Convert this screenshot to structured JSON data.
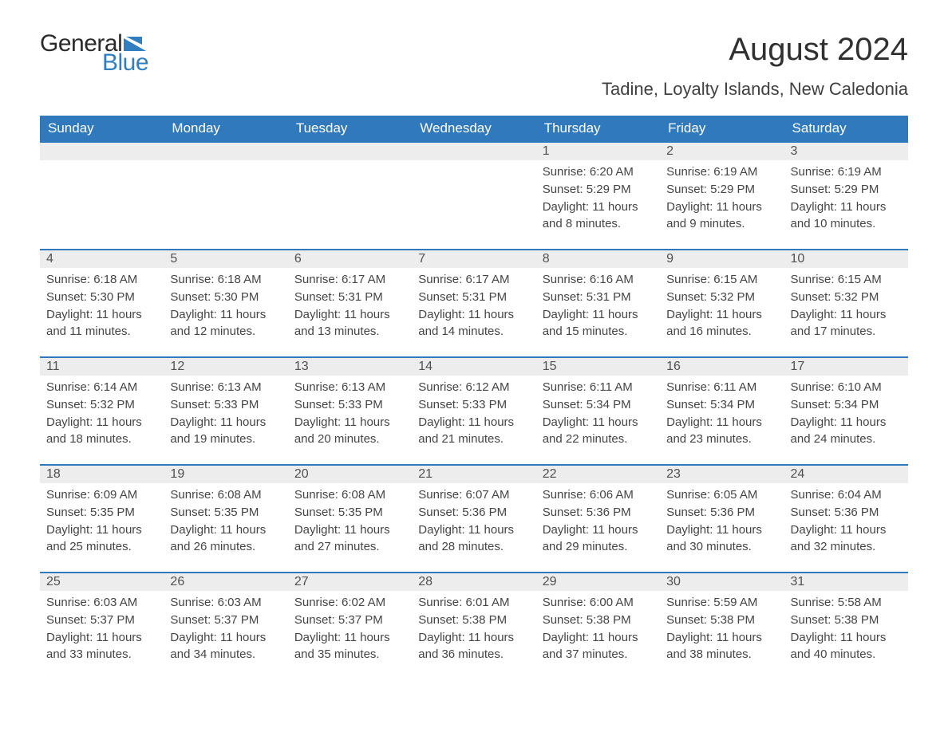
{
  "logo": {
    "word1": "General",
    "word2": "Blue",
    "flag_color": "#2f7fc1"
  },
  "title": "August 2024",
  "location": "Tadine, Loyalty Islands, New Caledonia",
  "colors": {
    "header_bg": "#3079bd",
    "header_text": "#ffffff",
    "daynum_bg": "#ededed",
    "row_divider": "#3079bd",
    "body_text": "#454545"
  },
  "columns": [
    "Sunday",
    "Monday",
    "Tuesday",
    "Wednesday",
    "Thursday",
    "Friday",
    "Saturday"
  ],
  "weeks": [
    [
      null,
      null,
      null,
      null,
      {
        "n": "1",
        "sunrise": "6:20 AM",
        "sunset": "5:29 PM",
        "daylight": "11 hours and 8 minutes."
      },
      {
        "n": "2",
        "sunrise": "6:19 AM",
        "sunset": "5:29 PM",
        "daylight": "11 hours and 9 minutes."
      },
      {
        "n": "3",
        "sunrise": "6:19 AM",
        "sunset": "5:29 PM",
        "daylight": "11 hours and 10 minutes."
      }
    ],
    [
      {
        "n": "4",
        "sunrise": "6:18 AM",
        "sunset": "5:30 PM",
        "daylight": "11 hours and 11 minutes."
      },
      {
        "n": "5",
        "sunrise": "6:18 AM",
        "sunset": "5:30 PM",
        "daylight": "11 hours and 12 minutes."
      },
      {
        "n": "6",
        "sunrise": "6:17 AM",
        "sunset": "5:31 PM",
        "daylight": "11 hours and 13 minutes."
      },
      {
        "n": "7",
        "sunrise": "6:17 AM",
        "sunset": "5:31 PM",
        "daylight": "11 hours and 14 minutes."
      },
      {
        "n": "8",
        "sunrise": "6:16 AM",
        "sunset": "5:31 PM",
        "daylight": "11 hours and 15 minutes."
      },
      {
        "n": "9",
        "sunrise": "6:15 AM",
        "sunset": "5:32 PM",
        "daylight": "11 hours and 16 minutes."
      },
      {
        "n": "10",
        "sunrise": "6:15 AM",
        "sunset": "5:32 PM",
        "daylight": "11 hours and 17 minutes."
      }
    ],
    [
      {
        "n": "11",
        "sunrise": "6:14 AM",
        "sunset": "5:32 PM",
        "daylight": "11 hours and 18 minutes."
      },
      {
        "n": "12",
        "sunrise": "6:13 AM",
        "sunset": "5:33 PM",
        "daylight": "11 hours and 19 minutes."
      },
      {
        "n": "13",
        "sunrise": "6:13 AM",
        "sunset": "5:33 PM",
        "daylight": "11 hours and 20 minutes."
      },
      {
        "n": "14",
        "sunrise": "6:12 AM",
        "sunset": "5:33 PM",
        "daylight": "11 hours and 21 minutes."
      },
      {
        "n": "15",
        "sunrise": "6:11 AM",
        "sunset": "5:34 PM",
        "daylight": "11 hours and 22 minutes."
      },
      {
        "n": "16",
        "sunrise": "6:11 AM",
        "sunset": "5:34 PM",
        "daylight": "11 hours and 23 minutes."
      },
      {
        "n": "17",
        "sunrise": "6:10 AM",
        "sunset": "5:34 PM",
        "daylight": "11 hours and 24 minutes."
      }
    ],
    [
      {
        "n": "18",
        "sunrise": "6:09 AM",
        "sunset": "5:35 PM",
        "daylight": "11 hours and 25 minutes."
      },
      {
        "n": "19",
        "sunrise": "6:08 AM",
        "sunset": "5:35 PM",
        "daylight": "11 hours and 26 minutes."
      },
      {
        "n": "20",
        "sunrise": "6:08 AM",
        "sunset": "5:35 PM",
        "daylight": "11 hours and 27 minutes."
      },
      {
        "n": "21",
        "sunrise": "6:07 AM",
        "sunset": "5:36 PM",
        "daylight": "11 hours and 28 minutes."
      },
      {
        "n": "22",
        "sunrise": "6:06 AM",
        "sunset": "5:36 PM",
        "daylight": "11 hours and 29 minutes."
      },
      {
        "n": "23",
        "sunrise": "6:05 AM",
        "sunset": "5:36 PM",
        "daylight": "11 hours and 30 minutes."
      },
      {
        "n": "24",
        "sunrise": "6:04 AM",
        "sunset": "5:36 PM",
        "daylight": "11 hours and 32 minutes."
      }
    ],
    [
      {
        "n": "25",
        "sunrise": "6:03 AM",
        "sunset": "5:37 PM",
        "daylight": "11 hours and 33 minutes."
      },
      {
        "n": "26",
        "sunrise": "6:03 AM",
        "sunset": "5:37 PM",
        "daylight": "11 hours and 34 minutes."
      },
      {
        "n": "27",
        "sunrise": "6:02 AM",
        "sunset": "5:37 PM",
        "daylight": "11 hours and 35 minutes."
      },
      {
        "n": "28",
        "sunrise": "6:01 AM",
        "sunset": "5:38 PM",
        "daylight": "11 hours and 36 minutes."
      },
      {
        "n": "29",
        "sunrise": "6:00 AM",
        "sunset": "5:38 PM",
        "daylight": "11 hours and 37 minutes."
      },
      {
        "n": "30",
        "sunrise": "5:59 AM",
        "sunset": "5:38 PM",
        "daylight": "11 hours and 38 minutes."
      },
      {
        "n": "31",
        "sunrise": "5:58 AM",
        "sunset": "5:38 PM",
        "daylight": "11 hours and 40 minutes."
      }
    ]
  ],
  "labels": {
    "sunrise": "Sunrise: ",
    "sunset": "Sunset: ",
    "daylight": "Daylight: "
  }
}
